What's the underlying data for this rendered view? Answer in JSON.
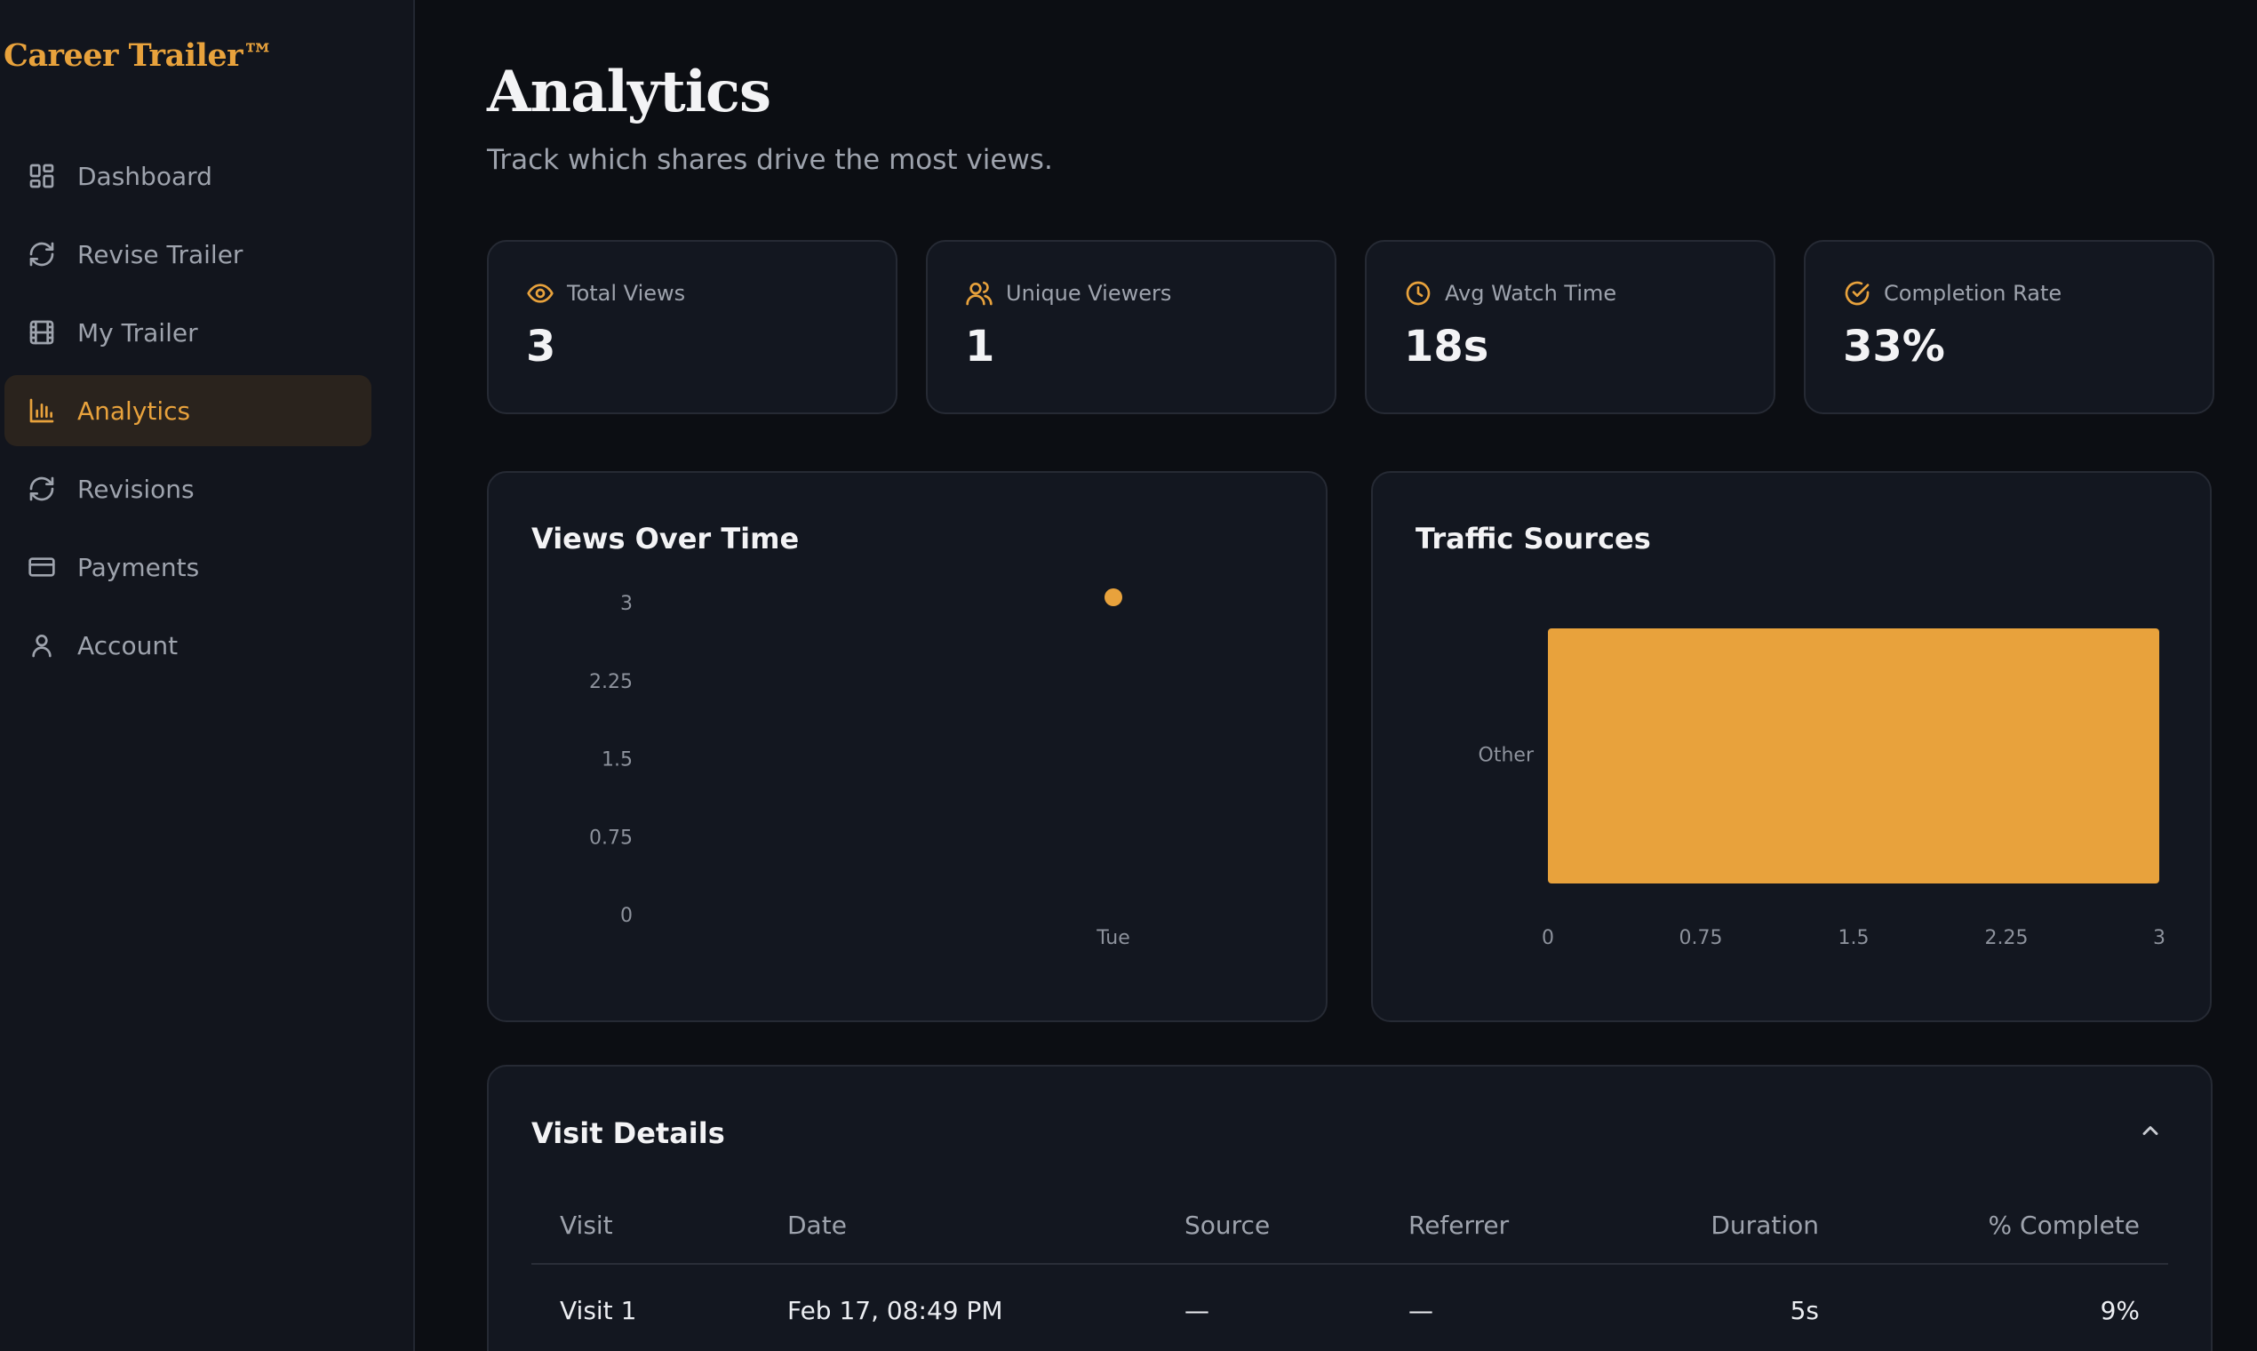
{
  "brand": "Career Trailer™",
  "sidebar": {
    "items": [
      {
        "label": "Dashboard",
        "icon": "dashboard-grid-icon"
      },
      {
        "label": "Revise Trailer",
        "icon": "refresh-icon"
      },
      {
        "label": "My Trailer",
        "icon": "film-icon"
      },
      {
        "label": "Analytics",
        "icon": "bar-chart-icon",
        "active": true
      },
      {
        "label": "Revisions",
        "icon": "refresh-icon"
      },
      {
        "label": "Payments",
        "icon": "credit-card-icon"
      },
      {
        "label": "Account",
        "icon": "user-icon"
      }
    ]
  },
  "header": {
    "title": "Analytics",
    "subtitle": "Track which shares drive the most views."
  },
  "stats": [
    {
      "label": "Total Views",
      "value": "3",
      "icon": "eye-icon"
    },
    {
      "label": "Unique Viewers",
      "value": "1",
      "icon": "users-icon"
    },
    {
      "label": "Avg Watch Time",
      "value": "18s",
      "icon": "clock-icon"
    },
    {
      "label": "Completion Rate",
      "value": "33%",
      "icon": "check-circle-icon"
    }
  ],
  "charts": {
    "views_title": "Views Over Time",
    "traffic_title": "Traffic Sources"
  },
  "chart_data": [
    {
      "type": "scatter",
      "title": "Views Over Time",
      "x": [
        "Tue"
      ],
      "values": [
        3
      ],
      "ylim": [
        0,
        3
      ],
      "yticks": [
        "0",
        "0.75",
        "1.5",
        "2.25",
        "3"
      ],
      "color": "#e8a23c",
      "grid": false
    },
    {
      "type": "bar",
      "orientation": "horizontal",
      "title": "Traffic Sources",
      "categories": [
        "Other"
      ],
      "values": [
        3
      ],
      "xlim": [
        0,
        3
      ],
      "xticks": [
        "0",
        "0.75",
        "1.5",
        "2.25",
        "3"
      ],
      "color": "#e8a23c",
      "grid": false
    }
  ],
  "visit_details": {
    "title": "Visit Details",
    "columns": [
      "Visit",
      "Date",
      "Source",
      "Referrer",
      "Duration",
      "% Complete"
    ],
    "rows": [
      {
        "visit": "Visit 1",
        "date": "Feb 17, 08:49 PM",
        "source": "—",
        "referrer": "—",
        "duration": "5s",
        "complete": "9%"
      }
    ]
  },
  "colors": {
    "accent": "#e8a23c",
    "background": "#0c0e13",
    "card": "#131720"
  }
}
